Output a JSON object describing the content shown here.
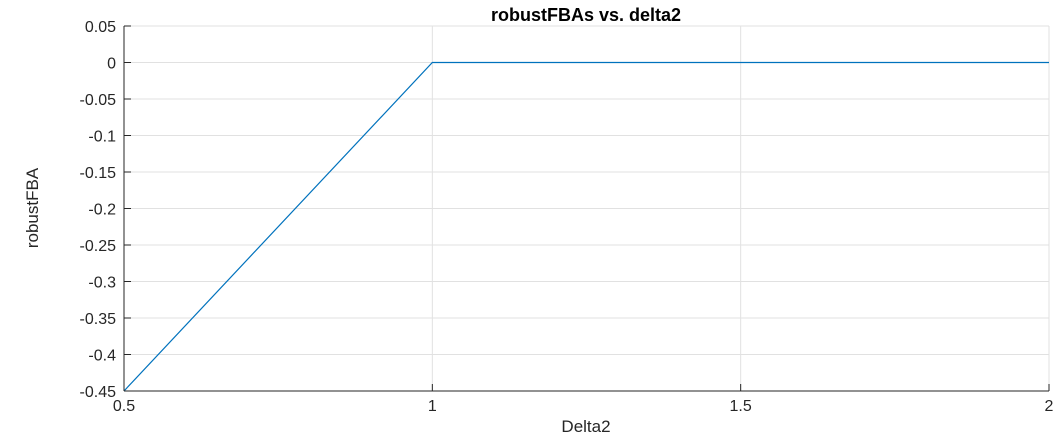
{
  "chart_data": {
    "type": "line",
    "title": "robustFBAs vs. delta2",
    "xlabel": "Delta2",
    "ylabel": "robustFBA",
    "xlim": [
      0.5,
      2
    ],
    "ylim": [
      -0.45,
      0.05
    ],
    "xticks": [
      0.5,
      1,
      1.5,
      2
    ],
    "xtick_labels": [
      "0.5",
      "1",
      "1.5",
      "2"
    ],
    "yticks": [
      0.05,
      0,
      -0.05,
      -0.1,
      -0.15,
      -0.2,
      -0.25,
      -0.3,
      -0.35,
      -0.4,
      -0.45
    ],
    "ytick_labels": [
      "0.05",
      "0",
      "-0.05",
      "-0.1",
      "-0.15",
      "-0.2",
      "-0.25",
      "-0.3",
      "-0.35",
      "-0.4",
      "-0.45"
    ],
    "grid": true,
    "series": [
      {
        "x": [
          0.5,
          1,
          2
        ],
        "y": [
          -0.45,
          0,
          0
        ],
        "color": "#0072BD"
      }
    ]
  }
}
